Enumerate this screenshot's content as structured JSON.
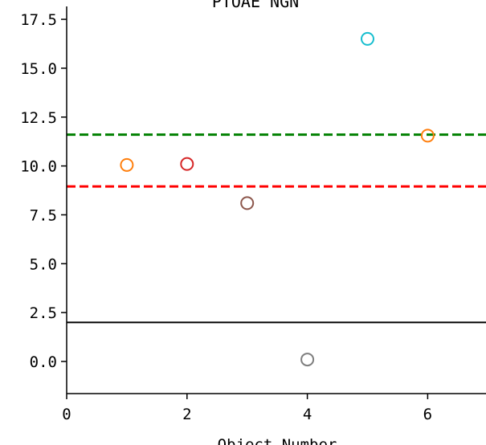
{
  "chart_data": {
    "type": "scatter",
    "title": "PTOAE NGN",
    "xlabel": "Object Number",
    "ylabel": "",
    "xlim": [
      0,
      7
    ],
    "ylim": [
      -1.65,
      18.2
    ],
    "x_ticks": [
      0,
      2,
      4,
      6
    ],
    "x_tick_labels": [
      "0",
      "2",
      "4",
      "6"
    ],
    "y_ticks": [
      0.0,
      2.5,
      5.0,
      7.5,
      10.0,
      12.5,
      15.0,
      17.5
    ],
    "y_tick_labels": [
      "0.0",
      "2.5",
      "5.0",
      "7.5",
      "10.0",
      "12.5",
      "15.0",
      "17.5"
    ],
    "grid": false,
    "points": [
      {
        "x": 1,
        "y": 10.05,
        "color": "#ff7f0e"
      },
      {
        "x": 2,
        "y": 10.1,
        "color": "#d62728"
      },
      {
        "x": 3,
        "y": 8.1,
        "color": "#8c564b"
      },
      {
        "x": 4,
        "y": 0.1,
        "color": "#7f7f7f"
      },
      {
        "x": 5,
        "y": 16.5,
        "color": "#17becf"
      },
      {
        "x": 6,
        "y": 11.55,
        "color": "#ff7f0e"
      }
    ],
    "hlines": [
      {
        "y": 11.6,
        "color": "#008000",
        "style": "dashed"
      },
      {
        "y": 8.95,
        "color": "#ff0000",
        "style": "dashed"
      },
      {
        "y": 2.0,
        "color": "#000000",
        "style": "solid"
      }
    ]
  }
}
